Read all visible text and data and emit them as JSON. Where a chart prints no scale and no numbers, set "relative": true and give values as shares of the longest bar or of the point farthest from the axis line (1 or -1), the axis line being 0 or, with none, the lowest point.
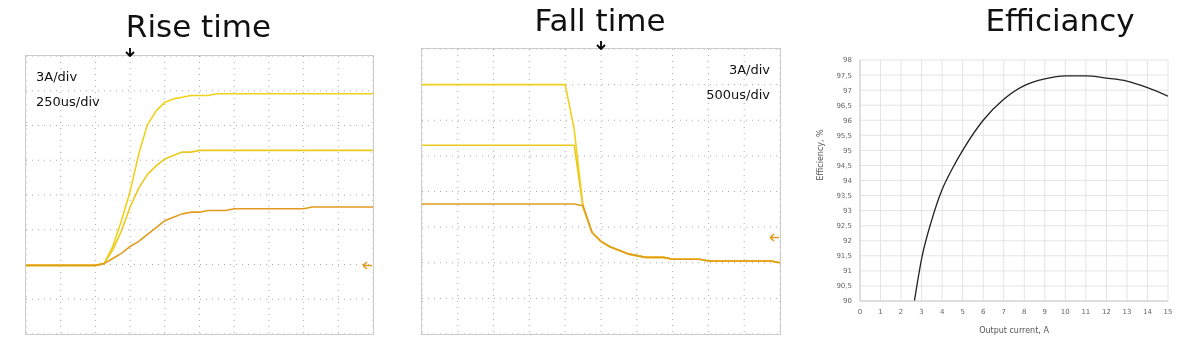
{
  "chart_data": [
    {
      "type": "line",
      "title": "Rise time",
      "relative": true,
      "grid": true,
      "annotations": [
        "3A/div",
        "250us/div"
      ],
      "categories": [
        null,
        null,
        null,
        null,
        null,
        null,
        null,
        null,
        null,
        null,
        null,
        null,
        null,
        null,
        null,
        null,
        null,
        null,
        null,
        null,
        null,
        null,
        null,
        null,
        null,
        null,
        null,
        null,
        null,
        null,
        null,
        null,
        null,
        null,
        null,
        null,
        null,
        null,
        null,
        null,
        null
      ],
      "series": [
        {
          "color": "#f0d11c",
          "values": [
            0,
            0,
            0,
            0,
            0,
            0,
            0,
            0,
            0,
            0.01,
            0.11,
            0.26,
            0.43,
            0.65,
            0.82,
            0.9,
            0.95,
            0.97,
            0.98,
            0.99,
            0.99,
            0.99,
            1,
            1,
            1,
            1,
            1,
            1,
            1,
            1,
            1,
            1,
            1,
            1,
            1,
            1,
            1,
            1,
            1,
            1,
            1
          ]
        },
        {
          "color": "#ecc91e",
          "values": [
            0,
            0,
            0,
            0,
            0,
            0,
            0,
            0,
            0,
            0.01,
            0.09,
            0.2,
            0.34,
            0.45,
            0.53,
            0.58,
            0.62,
            0.64,
            0.66,
            0.66,
            0.67,
            0.67,
            0.67,
            0.67,
            0.67,
            0.67,
            0.67,
            0.67,
            0.67,
            0.67,
            0.67,
            0.67,
            0.67,
            0.67,
            0.67,
            0.67,
            0.67,
            0.67,
            0.67,
            0.67,
            0.67
          ]
        },
        {
          "color": "#e39b1f",
          "values": [
            0,
            0,
            0,
            0,
            0,
            0,
            0,
            0,
            0,
            0.01,
            0.04,
            0.07,
            0.11,
            0.14,
            0.18,
            0.22,
            0.26,
            0.28,
            0.3,
            0.31,
            0.31,
            0.32,
            0.32,
            0.32,
            0.33,
            0.33,
            0.33,
            0.33,
            0.33,
            0.33,
            0.33,
            0.33,
            0.33,
            0.34,
            0.34,
            0.34,
            0.34,
            0.34,
            0.34,
            0.34,
            0.34
          ]
        }
      ]
    },
    {
      "type": "line",
      "title": "Fall time",
      "relative": true,
      "grid": true,
      "annotations": [
        "3A/div",
        "500us/div"
      ],
      "categories": [
        null,
        null,
        null,
        null,
        null,
        null,
        null,
        null,
        null,
        null,
        null,
        null,
        null,
        null,
        null,
        null,
        null,
        null,
        null,
        null,
        null,
        null,
        null,
        null,
        null,
        null,
        null,
        null,
        null,
        null,
        null,
        null,
        null,
        null,
        null,
        null,
        null,
        null,
        null,
        null,
        null
      ],
      "series": [
        {
          "color": "#f0d11c",
          "values": [
            1,
            1,
            1,
            1,
            1,
            1,
            1,
            1,
            1,
            1,
            1,
            1,
            1,
            1,
            1,
            1,
            1,
            0.75,
            0.31,
            0.17,
            0.12,
            0.09,
            0.07,
            0.05,
            0.04,
            0.03,
            0.03,
            0.03,
            0.02,
            0.02,
            0.02,
            0.02,
            0.01,
            0.01,
            0.01,
            0.01,
            0.01,
            0.01,
            0.01,
            0.01,
            0
          ]
        },
        {
          "color": "#ecc91e",
          "values": [
            0.66,
            0.66,
            0.66,
            0.66,
            0.66,
            0.66,
            0.66,
            0.66,
            0.66,
            0.66,
            0.66,
            0.66,
            0.66,
            0.66,
            0.66,
            0.66,
            0.66,
            0.66,
            0.31,
            0.17,
            0.12,
            0.09,
            0.07,
            0.05,
            0.04,
            0.03,
            0.03,
            0.03,
            0.02,
            0.02,
            0.02,
            0.02,
            0.01,
            0.01,
            0.01,
            0.01,
            0.01,
            0.01,
            0.01,
            0.01,
            0
          ]
        },
        {
          "color": "#e39b1f",
          "values": [
            0.33,
            0.33,
            0.33,
            0.33,
            0.33,
            0.33,
            0.33,
            0.33,
            0.33,
            0.33,
            0.33,
            0.33,
            0.33,
            0.33,
            0.33,
            0.33,
            0.33,
            0.33,
            0.32,
            0.17,
            0.12,
            0.09,
            0.07,
            0.05,
            0.04,
            0.03,
            0.03,
            0.03,
            0.02,
            0.02,
            0.02,
            0.02,
            0.01,
            0.01,
            0.01,
            0.01,
            0.01,
            0.01,
            0.01,
            0.01,
            0
          ]
        }
      ]
    },
    {
      "type": "line",
      "title": "Efficiancy",
      "xlabel": "Output current, A",
      "ylabel": "Efficiency, %",
      "grid": true,
      "xlim": [
        0,
        15
      ],
      "xticks": [
        0,
        1,
        2,
        3,
        4,
        5,
        6,
        7,
        8,
        9,
        10,
        11,
        12,
        13,
        14,
        15
      ],
      "ylim": [
        90,
        98
      ],
      "yticks": [
        90,
        {
          "value": 90.5,
          "label": "90,5"
        },
        91,
        {
          "value": 91.5,
          "label": "91,5"
        },
        92,
        {
          "value": 92.5,
          "label": "92,5"
        },
        93,
        {
          "value": 93.5,
          "label": "93,5"
        },
        94,
        {
          "value": 94.5,
          "label": "94,5"
        },
        95,
        {
          "value": 95.5,
          "label": "95,5"
        },
        96,
        {
          "value": 96.5,
          "label": "96,5"
        },
        97,
        {
          "value": 97.5,
          "label": "97,5"
        },
        98
      ],
      "series": [
        {
          "color": "#222222",
          "x": [
            2.65,
            3,
            3.5,
            4,
            4.5,
            5,
            6,
            7,
            8,
            9,
            10,
            11,
            12,
            13,
            14,
            15
          ],
          "values": [
            90,
            91.4,
            92.7,
            93.7,
            94.4,
            95,
            96,
            96.7,
            97.15,
            97.37,
            97.47,
            97.47,
            97.4,
            97.3,
            97.08,
            96.8
          ]
        }
      ]
    }
  ]
}
